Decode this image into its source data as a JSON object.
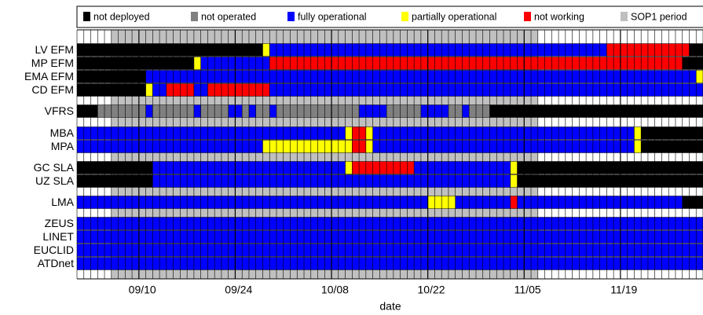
{
  "chart_data": {
    "type": "timeline",
    "x_label": "date",
    "xlim": [
      "09/01",
      "11/30"
    ],
    "xticks": [
      "09/10",
      "09/24",
      "10/08",
      "10/22",
      "11/05",
      "11/19"
    ],
    "legend": [
      {
        "name": "not deployed",
        "color": "#000000"
      },
      {
        "name": "not operated",
        "color": "#808080"
      },
      {
        "name": "fully operational",
        "color": "#0000ff"
      },
      {
        "name": "partially operational",
        "color": "#ffff00"
      },
      {
        "name": "not working",
        "color": "#ff0000"
      },
      {
        "name": "SOP1 period",
        "color": "#c0c0c0"
      }
    ],
    "sop1": {
      "start": "09/06",
      "end": "11/06"
    },
    "rows": [
      {
        "label": "LV EFM",
        "segments": [
          {
            "status": "not deployed",
            "start": "09/01",
            "end": "09/27"
          },
          {
            "status": "partially operational",
            "start": "09/28",
            "end": "09/28"
          },
          {
            "status": "fully operational",
            "start": "09/29",
            "end": "11/16"
          },
          {
            "status": "not working",
            "start": "11/17",
            "end": "11/28"
          },
          {
            "status": "not deployed",
            "start": "11/29",
            "end": "11/30"
          }
        ]
      },
      {
        "label": "MP EFM",
        "segments": [
          {
            "status": "not deployed",
            "start": "09/01",
            "end": "09/17"
          },
          {
            "status": "partially operational",
            "start": "09/18",
            "end": "09/18"
          },
          {
            "status": "fully operational",
            "start": "09/19",
            "end": "09/28"
          },
          {
            "status": "not working",
            "start": "09/29",
            "end": "11/27"
          },
          {
            "status": "not deployed",
            "start": "11/28",
            "end": "11/30"
          }
        ]
      },
      {
        "label": "EMA EFM",
        "segments": [
          {
            "status": "not deployed",
            "start": "09/01",
            "end": "09/10"
          },
          {
            "status": "fully operational",
            "start": "09/11",
            "end": "11/29"
          },
          {
            "status": "partially operational",
            "start": "11/30",
            "end": "11/30"
          }
        ]
      },
      {
        "label": "CD EFM",
        "segments": [
          {
            "status": "not deployed",
            "start": "09/01",
            "end": "09/10"
          },
          {
            "status": "partially operational",
            "start": "09/11",
            "end": "09/11"
          },
          {
            "status": "fully operational",
            "start": "09/12",
            "end": "09/13"
          },
          {
            "status": "not working",
            "start": "09/14",
            "end": "09/17"
          },
          {
            "status": "fully operational",
            "start": "09/18",
            "end": "09/19"
          },
          {
            "status": "not working",
            "start": "09/20",
            "end": "09/28"
          },
          {
            "status": "fully operational",
            "start": "09/29",
            "end": "11/30"
          }
        ]
      },
      {
        "label": "VFRS",
        "segments": [
          {
            "status": "not deployed",
            "start": "09/01",
            "end": "09/03"
          },
          {
            "status": "not operated",
            "start": "09/04",
            "end": "09/10"
          },
          {
            "status": "fully operational",
            "start": "09/11",
            "end": "09/11"
          },
          {
            "status": "not operated",
            "start": "09/12",
            "end": "09/17"
          },
          {
            "status": "fully operational",
            "start": "09/18",
            "end": "09/18"
          },
          {
            "status": "not operated",
            "start": "09/19",
            "end": "09/22"
          },
          {
            "status": "fully operational",
            "start": "09/23",
            "end": "09/24"
          },
          {
            "status": "not operated",
            "start": "09/25",
            "end": "09/25"
          },
          {
            "status": "fully operational",
            "start": "09/26",
            "end": "09/26"
          },
          {
            "status": "not operated",
            "start": "09/27",
            "end": "09/28"
          },
          {
            "status": "fully operational",
            "start": "09/29",
            "end": "09/29"
          },
          {
            "status": "not operated",
            "start": "09/30",
            "end": "10/11"
          },
          {
            "status": "fully operational",
            "start": "10/12",
            "end": "10/15"
          },
          {
            "status": "not operated",
            "start": "10/16",
            "end": "10/20"
          },
          {
            "status": "fully operational",
            "start": "10/21",
            "end": "10/24"
          },
          {
            "status": "not operated",
            "start": "10/25",
            "end": "10/26"
          },
          {
            "status": "fully operational",
            "start": "10/27",
            "end": "10/27"
          },
          {
            "status": "not operated",
            "start": "10/28",
            "end": "10/30"
          },
          {
            "status": "not deployed",
            "start": "10/31",
            "end": "11/30"
          }
        ]
      },
      {
        "label": "MBA",
        "segments": [
          {
            "status": "fully operational",
            "start": "09/01",
            "end": "10/09"
          },
          {
            "status": "partially operational",
            "start": "10/10",
            "end": "10/10"
          },
          {
            "status": "not working",
            "start": "10/11",
            "end": "10/12"
          },
          {
            "status": "partially operational",
            "start": "10/13",
            "end": "10/13"
          },
          {
            "status": "fully operational",
            "start": "10/14",
            "end": "11/20"
          },
          {
            "status": "partially operational",
            "start": "11/21",
            "end": "11/21"
          },
          {
            "status": "not deployed",
            "start": "11/22",
            "end": "11/30"
          }
        ]
      },
      {
        "label": "MPA",
        "segments": [
          {
            "status": "fully operational",
            "start": "09/01",
            "end": "09/27"
          },
          {
            "status": "partially operational",
            "start": "09/28",
            "end": "10/10"
          },
          {
            "status": "not working",
            "start": "10/11",
            "end": "10/12"
          },
          {
            "status": "partially operational",
            "start": "10/13",
            "end": "10/13"
          },
          {
            "status": "fully operational",
            "start": "10/14",
            "end": "11/20"
          },
          {
            "status": "partially operational",
            "start": "11/21",
            "end": "11/21"
          },
          {
            "status": "not deployed",
            "start": "11/22",
            "end": "11/30"
          }
        ]
      },
      {
        "label": "GC SLA",
        "segments": [
          {
            "status": "not deployed",
            "start": "09/01",
            "end": "09/11"
          },
          {
            "status": "fully operational",
            "start": "09/12",
            "end": "10/09"
          },
          {
            "status": "partially operational",
            "start": "10/10",
            "end": "10/10"
          },
          {
            "status": "not working",
            "start": "10/11",
            "end": "10/19"
          },
          {
            "status": "fully operational",
            "start": "10/20",
            "end": "11/02"
          },
          {
            "status": "partially operational",
            "start": "11/03",
            "end": "11/03"
          },
          {
            "status": "not deployed",
            "start": "11/04",
            "end": "11/30"
          }
        ]
      },
      {
        "label": "UZ SLA",
        "segments": [
          {
            "status": "not deployed",
            "start": "09/01",
            "end": "09/11"
          },
          {
            "status": "fully operational",
            "start": "09/12",
            "end": "11/02"
          },
          {
            "status": "partially operational",
            "start": "11/03",
            "end": "11/03"
          },
          {
            "status": "not deployed",
            "start": "11/04",
            "end": "11/30"
          }
        ]
      },
      {
        "label": "LMA",
        "segments": [
          {
            "status": "fully operational",
            "start": "09/01",
            "end": "10/21"
          },
          {
            "status": "partially operational",
            "start": "10/22",
            "end": "10/25"
          },
          {
            "status": "fully operational",
            "start": "10/26",
            "end": "11/02"
          },
          {
            "status": "not working",
            "start": "11/03",
            "end": "11/03"
          },
          {
            "status": "fully operational",
            "start": "11/04",
            "end": "11/27"
          },
          {
            "status": "not deployed",
            "start": "11/28",
            "end": "11/30"
          }
        ]
      },
      {
        "label": "ZEUS",
        "segments": [
          {
            "status": "fully operational",
            "start": "09/01",
            "end": "11/30"
          }
        ]
      },
      {
        "label": "LINET",
        "segments": [
          {
            "status": "fully operational",
            "start": "09/01",
            "end": "11/30"
          }
        ]
      },
      {
        "label": "EUCLID",
        "segments": [
          {
            "status": "fully operational",
            "start": "09/01",
            "end": "11/30"
          }
        ]
      },
      {
        "label": "ATDnet",
        "segments": [
          {
            "status": "fully operational",
            "start": "09/01",
            "end": "11/30"
          }
        ]
      }
    ]
  }
}
